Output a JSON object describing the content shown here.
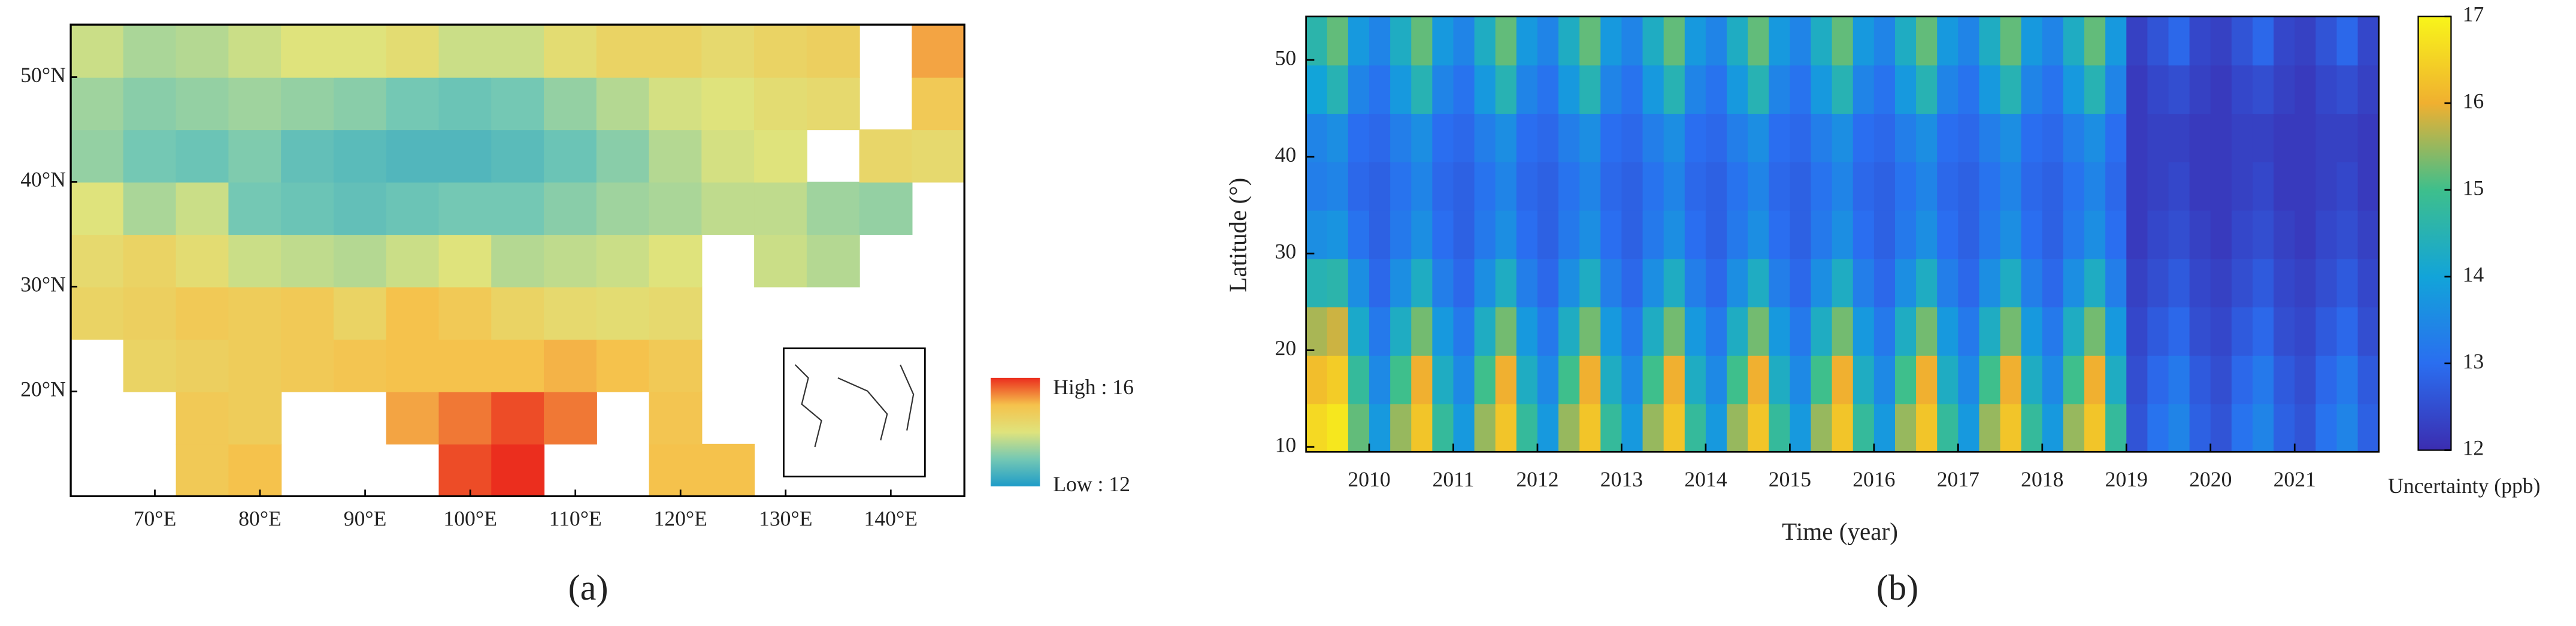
{
  "chart_data": [
    {
      "type": "map",
      "caption": "(a)",
      "x": [
        64.5,
        69.5,
        74.5,
        79.5,
        84.5,
        89.5,
        94.5,
        99.5,
        104.5,
        109.5,
        114.5,
        119.5,
        124.5,
        129.5,
        134.5,
        139.5,
        144.5
      ],
      "y": [
        12.5,
        17.5,
        22.5,
        27.5,
        32.5,
        37.5,
        42.5,
        47.5,
        52.5
      ],
      "z": [
        [
          null,
          null,
          14.8,
          15.0,
          null,
          null,
          null,
          15.8,
          16.0,
          null,
          null,
          15.0,
          15.0,
          null,
          null,
          null,
          null
        ],
        [
          null,
          null,
          14.8,
          14.7,
          null,
          null,
          15.2,
          15.5,
          15.8,
          15.5,
          null,
          14.9,
          null,
          null,
          null,
          null,
          null
        ],
        [
          null,
          14.5,
          14.6,
          14.7,
          14.8,
          14.9,
          15.0,
          15.0,
          15.0,
          15.1,
          15.0,
          14.8,
          null,
          null,
          null,
          null,
          null
        ],
        [
          14.5,
          14.6,
          14.8,
          14.7,
          14.8,
          14.5,
          15.0,
          14.8,
          14.5,
          14.3,
          14.2,
          14.3,
          null,
          null,
          null,
          null,
          null
        ],
        [
          14.3,
          14.5,
          14.2,
          13.8,
          13.7,
          13.6,
          13.8,
          14.0,
          13.6,
          13.7,
          13.8,
          14.0,
          null,
          13.8,
          13.6,
          null,
          null
        ],
        [
          14.0,
          13.5,
          13.8,
          13.0,
          12.9,
          12.8,
          12.9,
          13.0,
          13.0,
          13.2,
          13.4,
          13.5,
          13.7,
          13.7,
          13.4,
          13.3,
          null
        ],
        [
          13.3,
          13.0,
          12.9,
          13.1,
          12.8,
          12.7,
          12.6,
          12.6,
          12.7,
          12.9,
          13.2,
          13.6,
          13.9,
          14.0,
          null,
          14.4,
          14.3
        ],
        [
          13.4,
          13.2,
          13.3,
          13.4,
          13.3,
          13.2,
          13.0,
          12.9,
          13.0,
          13.3,
          13.6,
          13.9,
          14.0,
          14.2,
          14.3,
          null,
          14.8
        ],
        [
          13.8,
          13.5,
          13.6,
          13.8,
          14.0,
          14.0,
          14.2,
          13.8,
          13.8,
          14.2,
          14.5,
          14.5,
          14.3,
          14.5,
          14.6,
          null,
          15.2
        ]
      ],
      "xlim": [
        62,
        147
      ],
      "ylim": [
        10,
        55
      ],
      "xticks": [
        {
          "value": 70,
          "label": "70°E"
        },
        {
          "value": 80,
          "label": "80°E"
        },
        {
          "value": 90,
          "label": "90°E"
        },
        {
          "value": 100,
          "label": "100°E"
        },
        {
          "value": 110,
          "label": "110°E"
        },
        {
          "value": 120,
          "label": "120°E"
        },
        {
          "value": 130,
          "label": "130°E"
        },
        {
          "value": 140,
          "label": "140°E"
        }
      ],
      "yticks": [
        {
          "value": 20,
          "label": "20°N"
        },
        {
          "value": 30,
          "label": "30°N"
        },
        {
          "value": 40,
          "label": "40°N"
        },
        {
          "value": 50,
          "label": "50°N"
        }
      ],
      "clim": [
        12,
        16
      ],
      "colorbar_high": "High : 16",
      "colorbar_low": "Low : 12",
      "colorscale": [
        "#1e9cc8",
        "#74c8b4",
        "#dfe37c",
        "#f5c24c",
        "#eb2e1e"
      ]
    },
    {
      "type": "heatmap",
      "caption": "(b)",
      "x_label": "Time (year)",
      "y_label": "Latitude (°)",
      "colorbar_label": "Uncertainty (ppb)",
      "x": [
        2009.375,
        2009.625,
        2009.875,
        2010.125,
        2010.375,
        2010.625,
        2010.875,
        2011.125,
        2011.375,
        2011.625,
        2011.875,
        2012.125,
        2012.375,
        2012.625,
        2012.875,
        2013.125,
        2013.375,
        2013.625,
        2013.875,
        2014.125,
        2014.375,
        2014.625,
        2014.875,
        2015.125,
        2015.375,
        2015.625,
        2015.875,
        2016.125,
        2016.375,
        2016.625,
        2016.875,
        2017.125,
        2017.375,
        2017.625,
        2017.875,
        2018.125,
        2018.375,
        2018.625,
        2018.875,
        2019.125,
        2019.375,
        2019.625,
        2019.875,
        2020.125,
        2020.375,
        2020.625,
        2020.875,
        2021.125,
        2021.375,
        2021.625,
        2021.875
      ],
      "y": [
        12,
        17,
        22,
        27,
        32,
        37,
        42,
        47,
        52
      ],
      "z": [
        [
          16.6,
          16.8,
          15.2,
          13.8,
          15.5,
          16.3,
          14.8,
          13.8,
          15.5,
          16.3,
          14.8,
          13.8,
          15.5,
          16.3,
          14.8,
          13.8,
          15.5,
          16.3,
          14.8,
          13.8,
          15.5,
          16.3,
          14.8,
          13.8,
          15.5,
          16.3,
          14.8,
          13.8,
          15.5,
          16.3,
          14.8,
          13.8,
          15.5,
          16.3,
          14.8,
          13.8,
          15.5,
          16.3,
          14.8,
          12.6,
          13.1,
          13.4,
          12.8,
          12.6,
          13.1,
          13.4,
          12.8,
          12.6,
          13.1,
          13.4,
          12.8
        ],
        [
          16.2,
          16.4,
          14.8,
          13.5,
          15.0,
          16.0,
          14.3,
          13.5,
          15.0,
          16.0,
          14.3,
          13.5,
          15.0,
          16.0,
          14.3,
          13.5,
          15.0,
          16.0,
          14.3,
          13.5,
          15.0,
          16.0,
          14.3,
          13.5,
          15.0,
          16.0,
          14.3,
          13.5,
          15.0,
          16.0,
          14.3,
          13.5,
          15.0,
          16.0,
          14.3,
          13.5,
          15.0,
          16.0,
          14.3,
          12.5,
          12.9,
          13.2,
          12.7,
          12.5,
          12.9,
          13.2,
          12.7,
          12.5,
          12.9,
          13.2,
          12.7
        ],
        [
          15.6,
          15.8,
          14.2,
          13.2,
          14.3,
          15.3,
          13.8,
          13.2,
          14.3,
          15.3,
          13.8,
          13.2,
          14.3,
          15.3,
          13.8,
          13.2,
          14.3,
          15.3,
          13.8,
          13.2,
          14.3,
          15.3,
          13.8,
          13.2,
          14.3,
          15.3,
          13.8,
          13.2,
          14.3,
          15.3,
          13.8,
          13.2,
          14.3,
          15.3,
          13.8,
          13.2,
          14.3,
          15.3,
          13.8,
          12.4,
          12.7,
          12.9,
          12.5,
          12.4,
          12.7,
          12.9,
          12.5,
          12.4,
          12.7,
          12.9,
          12.5
        ],
        [
          14.5,
          14.6,
          13.6,
          12.9,
          13.6,
          14.3,
          13.3,
          12.9,
          13.6,
          14.3,
          13.3,
          12.9,
          13.6,
          14.3,
          13.3,
          12.9,
          13.6,
          14.3,
          13.3,
          12.9,
          13.6,
          14.3,
          13.3,
          12.9,
          13.6,
          14.3,
          13.3,
          12.9,
          13.6,
          14.3,
          13.3,
          12.9,
          13.6,
          14.3,
          13.3,
          12.9,
          13.6,
          14.3,
          13.3,
          12.3,
          12.5,
          12.7,
          12.4,
          12.3,
          12.5,
          12.7,
          12.4,
          12.3,
          12.5,
          12.7,
          12.4
        ],
        [
          13.6,
          13.7,
          13.1,
          12.8,
          13.2,
          13.6,
          13.0,
          12.8,
          13.2,
          13.6,
          13.0,
          12.8,
          13.2,
          13.6,
          13.0,
          12.8,
          13.2,
          13.6,
          13.0,
          12.8,
          13.2,
          13.6,
          13.0,
          12.8,
          13.2,
          13.6,
          13.0,
          12.8,
          13.2,
          13.6,
          13.0,
          12.8,
          13.2,
          13.6,
          13.0,
          12.8,
          13.2,
          13.6,
          13.0,
          12.2,
          12.4,
          12.5,
          12.3,
          12.2,
          12.4,
          12.5,
          12.3,
          12.2,
          12.4,
          12.5,
          12.3
        ],
        [
          13.3,
          13.4,
          12.9,
          12.8,
          13.1,
          13.4,
          12.9,
          12.8,
          13.1,
          13.4,
          12.9,
          12.8,
          13.1,
          13.4,
          12.9,
          12.8,
          13.1,
          13.4,
          12.9,
          12.8,
          13.1,
          13.4,
          12.9,
          12.8,
          13.1,
          13.4,
          12.9,
          12.8,
          13.1,
          13.4,
          12.9,
          12.8,
          13.1,
          13.4,
          12.9,
          12.8,
          13.1,
          13.4,
          12.9,
          12.2,
          12.3,
          12.4,
          12.2,
          12.2,
          12.3,
          12.4,
          12.2,
          12.2,
          12.3,
          12.4,
          12.2
        ],
        [
          13.4,
          13.6,
          13.0,
          12.9,
          13.3,
          13.6,
          13.0,
          12.9,
          13.3,
          13.6,
          13.0,
          12.9,
          13.3,
          13.6,
          13.0,
          12.9,
          13.3,
          13.6,
          13.0,
          12.9,
          13.3,
          13.6,
          13.0,
          12.9,
          13.3,
          13.6,
          13.0,
          12.9,
          13.3,
          13.6,
          13.0,
          12.9,
          13.3,
          13.6,
          13.0,
          12.9,
          13.3,
          13.6,
          13.0,
          12.2,
          12.3,
          12.3,
          12.2,
          12.2,
          12.3,
          12.3,
          12.2,
          12.2,
          12.3,
          12.3,
          12.2
        ],
        [
          14.0,
          14.5,
          13.4,
          13.1,
          13.8,
          14.5,
          13.4,
          13.1,
          13.8,
          14.5,
          13.4,
          13.1,
          13.8,
          14.5,
          13.4,
          13.1,
          13.8,
          14.5,
          13.4,
          13.1,
          13.8,
          14.5,
          13.4,
          13.1,
          13.8,
          14.5,
          13.4,
          13.1,
          13.8,
          14.5,
          13.4,
          13.1,
          13.8,
          14.5,
          13.4,
          13.1,
          13.8,
          14.5,
          13.4,
          12.2,
          12.4,
          12.5,
          12.3,
          12.2,
          12.4,
          12.5,
          12.3,
          12.2,
          12.4,
          12.5,
          12.3
        ],
        [
          14.6,
          15.2,
          13.8,
          13.4,
          14.3,
          15.2,
          13.8,
          13.4,
          14.3,
          15.2,
          13.8,
          13.4,
          14.3,
          15.2,
          13.8,
          13.4,
          14.3,
          15.2,
          13.8,
          13.4,
          14.3,
          15.2,
          13.8,
          13.4,
          14.3,
          15.2,
          13.8,
          13.4,
          14.3,
          15.2,
          13.8,
          13.4,
          14.3,
          15.2,
          13.8,
          13.4,
          14.3,
          15.2,
          13.8,
          12.3,
          12.6,
          12.9,
          12.4,
          12.3,
          12.6,
          12.9,
          12.4,
          12.3,
          12.6,
          12.9,
          12.4
        ]
      ],
      "xlim": [
        2009.25,
        2022
      ],
      "ylim": [
        9.5,
        54.5
      ],
      "xticks": [
        2010,
        2011,
        2012,
        2013,
        2014,
        2015,
        2016,
        2017,
        2018,
        2019,
        2020,
        2021
      ],
      "yticks": [
        10,
        20,
        30,
        40,
        50
      ],
      "clim": [
        12,
        17
      ],
      "cticks": [
        12,
        13,
        14,
        15,
        16,
        17
      ],
      "colorscale": [
        "#3b2db0",
        "#2a6ef0",
        "#12a4d9",
        "#3ebf8c",
        "#f0b030",
        "#f8f51a"
      ]
    }
  ]
}
